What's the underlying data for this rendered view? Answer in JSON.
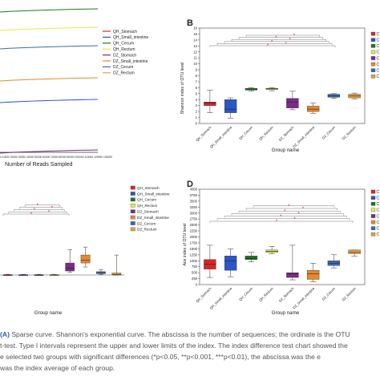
{
  "panel_a": {
    "xlabel": "Number of Reads Sampled",
    "tick_text": "0 10000 20000 30000 40000 50000 60000 70000 80000 90000 100000 110000 120000 130000",
    "legend": [
      "QH_Stomach",
      "QH_Small_intestine",
      "QH_Cecum",
      "QH_Rectum",
      "DZ_Stomach",
      "DZ_Small_intestine",
      "DZ_Cecum",
      "DZ_Rectum"
    ],
    "colors": [
      "#d62728",
      "#2a56c6",
      "#1a7a1a",
      "#e8e84a",
      "#7a2b8a",
      "#e8882a",
      "#3a6ab0",
      "#e8a030"
    ]
  },
  "panel_b": {
    "letter": "B",
    "ylabel": "Shannon index of OTU level",
    "xlabel": "Group name",
    "categories": [
      "QH_Stomach",
      "QH_Small_intestine",
      "QH_Cecum",
      "QH_Rectum",
      "DZ_Stomach",
      "DZ_Small_intestine",
      "DZ_Cecum",
      "DZ_Rectum"
    ],
    "colors": [
      "#d62728",
      "#2a56c6",
      "#1a7a1a",
      "#e8e84a",
      "#7a2b8a",
      "#e8882a",
      "#3a6ab0",
      "#e8a030"
    ],
    "yticks": [
      "0",
      "1",
      "2",
      "3",
      "4",
      "5",
      "6",
      "7",
      "8",
      "9",
      "10",
      "11",
      "12",
      "13",
      "14",
      "15",
      "16"
    ],
    "ylim": [
      0,
      16
    ],
    "boxes": [
      {
        "min": 1.8,
        "q1": 3.0,
        "median": 3.4,
        "q3": 3.6,
        "max": 5.6
      },
      {
        "min": 0.9,
        "q1": 1.8,
        "median": 2.4,
        "q3": 4.0,
        "max": 4.3
      },
      {
        "min": 5.4,
        "q1": 5.6,
        "median": 5.7,
        "q3": 5.9,
        "max": 6.0
      },
      {
        "min": 5.5,
        "q1": 5.7,
        "median": 5.8,
        "q3": 5.9,
        "max": 6.0
      },
      {
        "min": 2.3,
        "q1": 2.6,
        "median": 3.6,
        "q3": 4.2,
        "max": 5.4
      },
      {
        "min": 1.7,
        "q1": 2.0,
        "median": 2.4,
        "q3": 2.9,
        "max": 3.4
      },
      {
        "min": 4.2,
        "q1": 4.4,
        "median": 4.6,
        "q3": 4.9,
        "max": 5.0
      },
      {
        "min": 4.1,
        "q1": 4.3,
        "median": 4.6,
        "q3": 4.9,
        "max": 5.1
      }
    ],
    "star": "*",
    "legend_letters": [
      "C",
      "C",
      "C",
      "C",
      "C",
      "C",
      "C",
      "C"
    ]
  },
  "panel_c": {
    "xlabel": "Group name",
    "legend": [
      "QH_Stomach",
      "QH_Small_intestine",
      "QH_Cecum",
      "QH_Rectum",
      "DZ_Stomach",
      "DZ_Small_intestine",
      "DZ_Cecum",
      "DZ_Rectum"
    ],
    "colors": [
      "#d62728",
      "#2a56c6",
      "#1a7a1a",
      "#e8e84a",
      "#7a2b8a",
      "#e8882a",
      "#3a6ab0",
      "#e8a030"
    ],
    "ylim": [
      0,
      100
    ],
    "boxes": [
      {
        "min": 0,
        "q1": 0,
        "median": 0,
        "q3": 0.5,
        "max": 1
      },
      {
        "min": 0,
        "q1": 0,
        "median": 0,
        "q3": 0.5,
        "max": 1
      },
      {
        "min": 0,
        "q1": 0,
        "median": 0,
        "q3": 0.5,
        "max": 1
      },
      {
        "min": 0,
        "q1": 0,
        "median": 0,
        "q3": 0.5,
        "max": 1
      },
      {
        "min": 4,
        "q1": 6,
        "median": 10,
        "q3": 18,
        "max": 38
      },
      {
        "min": 12,
        "q1": 18,
        "median": 22,
        "q3": 30,
        "max": 42
      },
      {
        "min": 1,
        "q1": 2,
        "median": 3,
        "q3": 5,
        "max": 8
      },
      {
        "min": 0,
        "q1": 0,
        "median": 1,
        "q3": 3,
        "max": 30
      }
    ],
    "star": "*"
  },
  "panel_d": {
    "letter": "D",
    "ylabel": "Ace index of OTU level",
    "xlabel": "Group name",
    "categories": [
      "QH_Stomach",
      "QH_Small_intestine",
      "QH_Cecum",
      "QH_Rectum",
      "DZ_Stomach",
      "DZ_Small_intestine",
      "DZ_Cecum",
      "DZ_Rectum"
    ],
    "colors": [
      "#d62728",
      "#2a56c6",
      "#1a7a1a",
      "#e8e84a",
      "#7a2b8a",
      "#e8882a",
      "#3a6ab0",
      "#e8a030"
    ],
    "yticks": [
      "0",
      "250",
      "500",
      "750",
      "1000",
      "1250",
      "1500",
      "1750",
      "2000",
      "2250",
      "2500",
      "2750",
      "3000",
      "3250",
      "3500",
      "3750",
      "4000"
    ],
    "ylim": [
      0,
      4000
    ],
    "boxes": [
      {
        "min": 300,
        "q1": 650,
        "median": 850,
        "q3": 1050,
        "max": 1650
      },
      {
        "min": 330,
        "q1": 600,
        "median": 1000,
        "q3": 1200,
        "max": 1500
      },
      {
        "min": 950,
        "q1": 1050,
        "median": 1100,
        "q3": 1200,
        "max": 1350
      },
      {
        "min": 1300,
        "q1": 1350,
        "median": 1400,
        "q3": 1450,
        "max": 1600
      },
      {
        "min": 200,
        "q1": 300,
        "median": 450,
        "q3": 500,
        "max": 1650
      },
      {
        "min": 120,
        "q1": 220,
        "median": 450,
        "q3": 600,
        "max": 900
      },
      {
        "min": 700,
        "q1": 800,
        "median": 900,
        "q3": 1000,
        "max": 1250
      },
      {
        "min": 1200,
        "q1": 1300,
        "median": 1350,
        "q3": 1450,
        "max": 1450
      }
    ],
    "star": "*",
    "legend_letters": [
      "C",
      "C",
      "C",
      "C",
      "C",
      "C",
      "C",
      "C"
    ]
  },
  "caption": {
    "fig": "(A)",
    "line1": " Sparse curve. Shannon's exponential curve. The abscissa is the number of sequences; the ordinate is the OTU",
    "line2": "t-test. Type I intervals represent the upper and lower limits of the index. The index difference test chart showed the",
    "line3": "e selected two groups with significant differences (*p<0.05, **p<0.001, ***p<0.01), the abscissa was the e",
    "line4": "was the index average of each group."
  }
}
